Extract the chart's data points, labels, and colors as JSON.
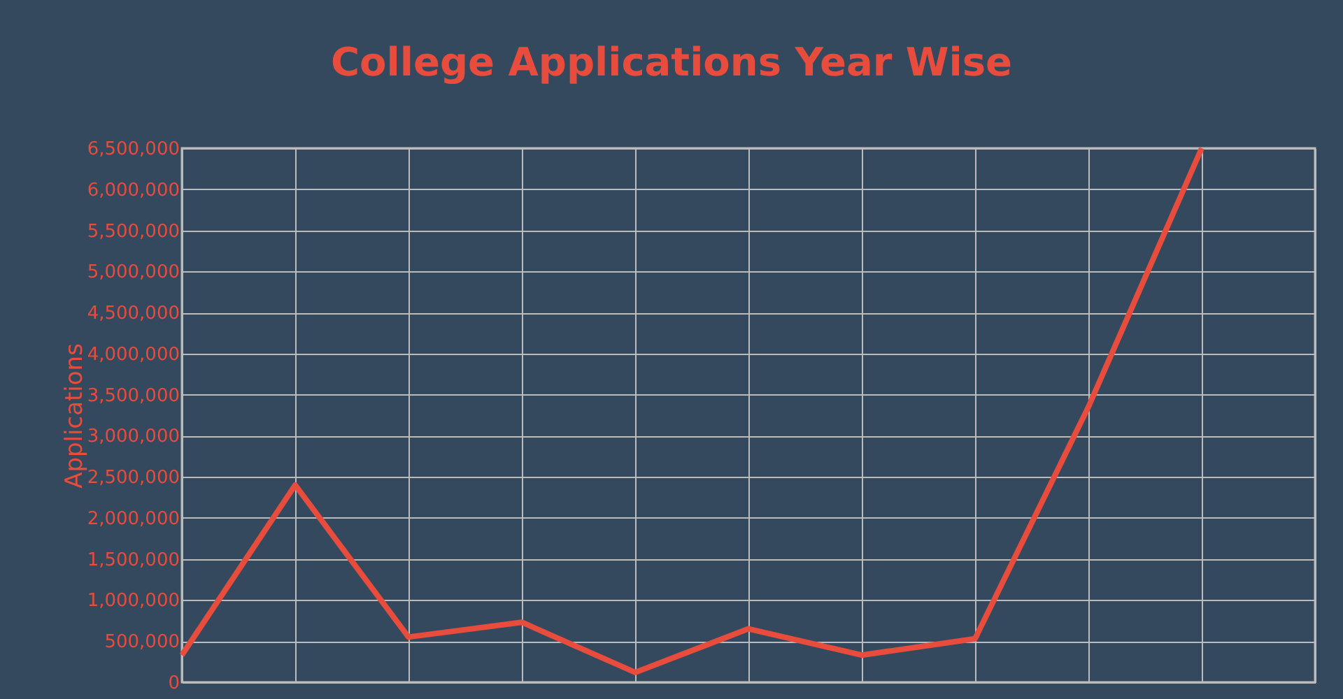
{
  "chart_data": {
    "type": "line",
    "title": "College Applications Year Wise",
    "ylabel": "Applications",
    "categories": [
      null,
      null,
      null,
      null,
      null,
      null,
      null,
      null,
      null,
      null
    ],
    "series": [
      {
        "color": "#e74c3c",
        "values": [
          330000,
          2400000,
          550000,
          730000,
          120000,
          650000,
          330000,
          530000,
          3350000,
          6500000
        ]
      }
    ],
    "ylim": [
      0,
      6500000
    ],
    "yticks": [
      0,
      {
        "value": 500000,
        "label": "500,000"
      },
      {
        "value": 1000000,
        "label": "1,000,000"
      },
      {
        "value": 1500000,
        "label": "1,500,000"
      },
      {
        "value": 2000000,
        "label": "2,000,000"
      },
      {
        "value": 2500000,
        "label": "2,500,000"
      },
      {
        "value": 3000000,
        "label": "3,000,000"
      },
      {
        "value": 3500000,
        "label": "3,500,000"
      },
      {
        "value": 4000000,
        "label": "4,000,000"
      },
      {
        "value": 4500000,
        "label": "4,500,000"
      },
      {
        "value": 5000000,
        "label": "5,000,000"
      },
      {
        "value": 5500000,
        "label": "5,500,000"
      },
      {
        "value": 6000000,
        "label": "6,000,000"
      },
      {
        "value": 6500000,
        "label": "6,500,000"
      }
    ],
    "grid": true,
    "marker": "none",
    "line_style": "solid"
  }
}
